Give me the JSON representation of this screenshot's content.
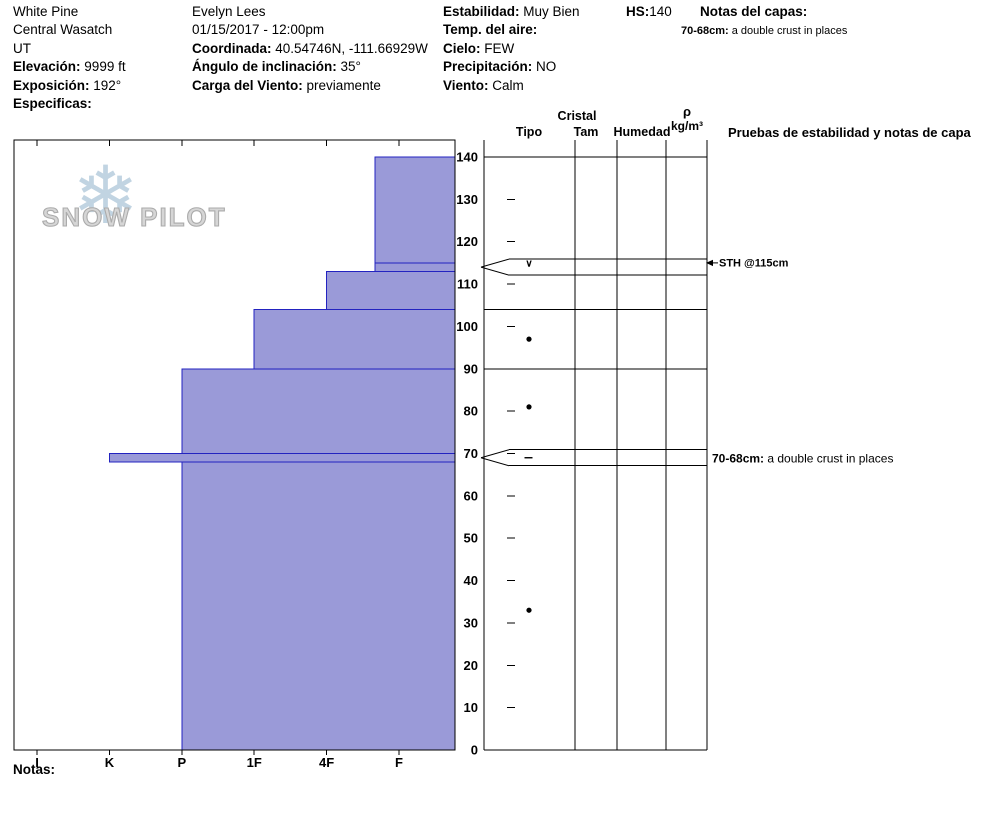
{
  "header": {
    "location": {
      "line1": "White Pine",
      "line2": "Central Wasatch",
      "line3": "UT"
    },
    "col1_pairs": [
      {
        "label": "Elevación:",
        "value": "9999 ft"
      },
      {
        "label": "Exposición:",
        "value": "192°"
      },
      {
        "label": "Especificas:",
        "value": ""
      }
    ],
    "observer": {
      "line1": "Evelyn Lees",
      "line2": "01/15/2017 - 12:00pm"
    },
    "col2_pairs": [
      {
        "label": "Coordinada:",
        "value": "40.54746N, -111.66929W"
      },
      {
        "label": "Ángulo de inclinación:",
        "value": "35°"
      },
      {
        "label": "Carga del Viento:",
        "value": "previamente"
      }
    ],
    "col3_pairs": [
      {
        "label": "Estabilidad:",
        "value": "Muy Bien"
      },
      {
        "label": "Temp. del aire:",
        "value": ""
      },
      {
        "label": "Cielo:",
        "value": "FEW"
      },
      {
        "label": "Precipitación:",
        "value": "NO"
      },
      {
        "label": "Viento:",
        "value": "Calm"
      }
    ],
    "hs": {
      "label": "HS:",
      "value": "140"
    },
    "layer_notes": {
      "label": "Notas del capas:",
      "note_bold": "70-68cm:",
      "note_text": " a double crust in places"
    }
  },
  "logo": {
    "text": "SNOW PILOT"
  },
  "columns": {
    "group_header": "Cristal",
    "tipo": "Tipo",
    "tam": "Tam",
    "humedad": "Humedad",
    "rho_symbol": "ρ",
    "rho_unit": "kg/m³",
    "tests_header": "Pruebas de estabilidad y notas de capa"
  },
  "footer": {
    "notas_label": "Notas:"
  },
  "chart_data": {
    "type": "bar",
    "subtype": "snow-hardness-profile",
    "depth_unit": "cm",
    "total_depth_cm": 140,
    "depth_ticks": [
      0,
      10,
      20,
      30,
      40,
      50,
      60,
      70,
      80,
      90,
      100,
      110,
      120,
      130,
      140
    ],
    "hardness_categories": [
      "I",
      "K",
      "P",
      "1F",
      "4F",
      "F"
    ],
    "layers": [
      {
        "top_cm": 140,
        "bottom_cm": 115,
        "hardness": "F-",
        "hardness_index": 4.67
      },
      {
        "top_cm": 115,
        "bottom_cm": 113,
        "hardness": "F-",
        "hardness_index": 4.67
      },
      {
        "top_cm": 113,
        "bottom_cm": 104,
        "hardness": "4F",
        "hardness_index": 4
      },
      {
        "top_cm": 104,
        "bottom_cm": 90,
        "hardness": "1F",
        "hardness_index": 3
      },
      {
        "top_cm": 90,
        "bottom_cm": 70,
        "hardness": "P",
        "hardness_index": 2
      },
      {
        "top_cm": 70,
        "bottom_cm": 68,
        "hardness": "K",
        "hardness_index": 1
      },
      {
        "top_cm": 68,
        "bottom_cm": 0,
        "hardness": "P",
        "hardness_index": 2
      }
    ],
    "column_boundaries_cm": [
      140,
      104,
      90,
      0
    ],
    "thin_layer_markers": [
      {
        "top_cm": 115,
        "bottom_cm": 113
      },
      {
        "top_cm": 70,
        "bottom_cm": 68
      }
    ],
    "grain_symbols": [
      {
        "depth_cm": 115,
        "shape": "text",
        "glyph": "∨",
        "name": "surface-hoar"
      },
      {
        "depth_cm": 97,
        "shape": "dot",
        "glyph": "●",
        "name": "rounded-grains"
      },
      {
        "depth_cm": 81,
        "shape": "dot",
        "glyph": "●",
        "name": "rounded-grains"
      },
      {
        "depth_cm": 69,
        "shape": "dash",
        "glyph": "–",
        "name": "crust"
      },
      {
        "depth_cm": 33,
        "shape": "dot",
        "glyph": "●",
        "name": "rounded-grains"
      }
    ],
    "annotations": [
      {
        "depth_cm": 115,
        "arrow": true,
        "text": "STH @115cm"
      },
      {
        "depth_cm": 68.8,
        "arrow": false,
        "bold_prefix": "70-68cm:",
        "text": " a double crust in places"
      }
    ],
    "colors": {
      "bar_fill": "#9a9ad8",
      "bar_stroke": "#2323c0",
      "frame": "#000000"
    }
  }
}
